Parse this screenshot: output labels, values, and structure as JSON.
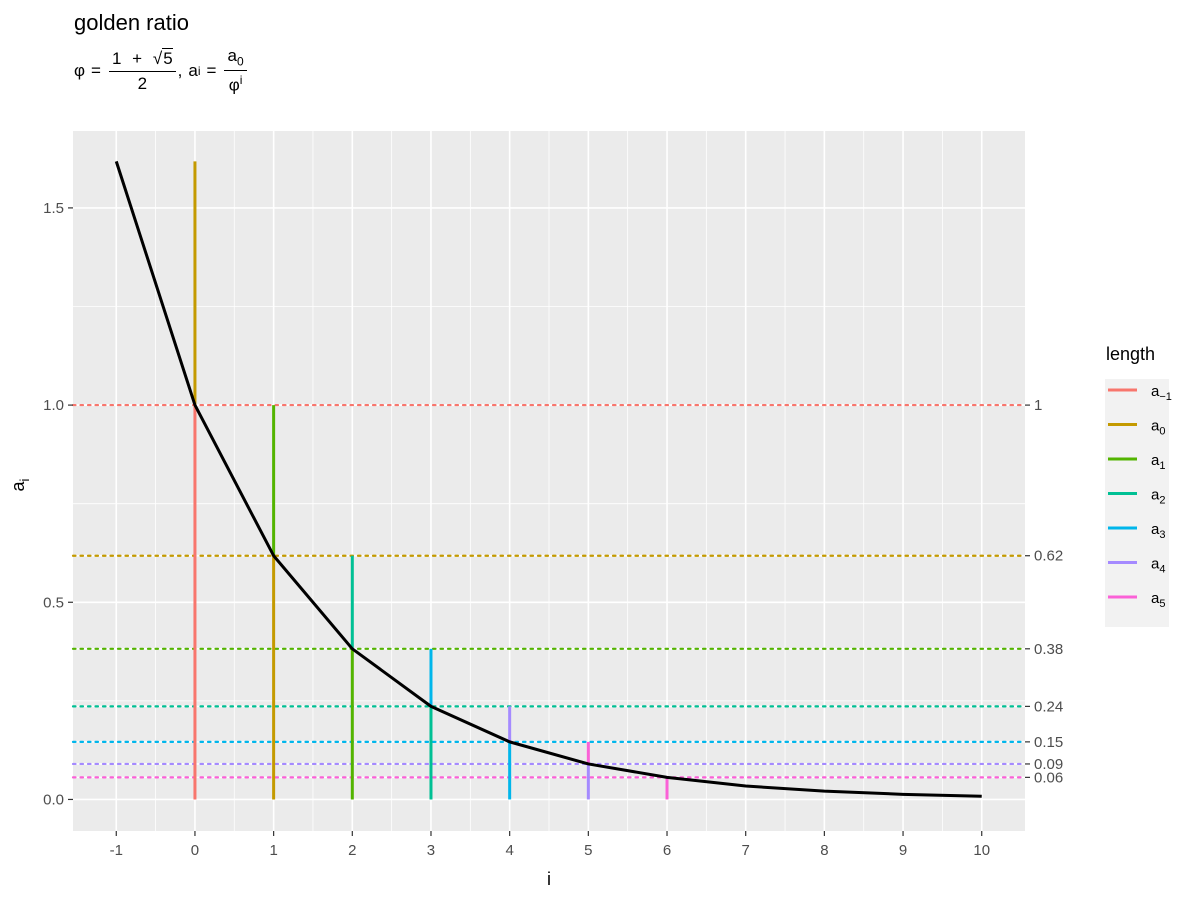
{
  "title": "golden ratio",
  "formula": {
    "phi": "φ",
    "equals": "=",
    "num_one": "1",
    "plus": "+",
    "root_sign": "√",
    "root_arg": "5",
    "den_two": "2",
    "comma": ",",
    "a": "a",
    "a_sub_i": "i",
    "a_sub_0": "0",
    "phi_sup": "i"
  },
  "chart_data": {
    "type": "line",
    "xlabel": "i",
    "ylabel": "a",
    "ylabel_sub": "i",
    "xlim": [
      -1.55,
      10.55
    ],
    "ylim": [
      -0.08,
      1.695
    ],
    "x_ticks": [
      -1,
      0,
      1,
      2,
      3,
      4,
      5,
      6,
      7,
      8,
      9,
      10
    ],
    "x_tick_labels": [
      "-1",
      "0",
      "1",
      "2",
      "3",
      "4",
      "5",
      "6",
      "7",
      "8",
      "9",
      "10"
    ],
    "y_ticks": [
      0.0,
      0.5,
      1.0,
      1.5
    ],
    "y_tick_labels": [
      "0.0",
      "0.5",
      "1.0",
      "1.5"
    ],
    "y_minor_ticks": [
      0.25,
      0.75,
      1.25
    ],
    "secondary_y_ticks": [
      1.0,
      0.618,
      0.382,
      0.236,
      0.146,
      0.09,
      0.056
    ],
    "secondary_y_tick_labels": [
      "1",
      "0.62",
      "0.38",
      "0.24",
      "0.15",
      "0.09",
      "0.06"
    ],
    "curve": {
      "x": [
        -1,
        0,
        1,
        2,
        3,
        4,
        5,
        6,
        7,
        8,
        9,
        10
      ],
      "y": [
        1.618,
        1.0,
        0.618,
        0.382,
        0.236,
        0.146,
        0.09,
        0.056,
        0.034,
        0.021,
        0.013,
        0.008
      ],
      "color": "#000000"
    },
    "segments": [
      {
        "legend_sub": "−1",
        "color": "#F8766D",
        "x": 0,
        "y0": 0,
        "y1": 1.0,
        "ref_y": 1.0
      },
      {
        "legend_sub": "0",
        "color": "#C49A00",
        "x": 0,
        "y0": 1.0,
        "y1": 1.618,
        "extra_x": 1,
        "extra_y0": 0,
        "extra_y1": 0.618,
        "ref_y": 0.618
      },
      {
        "legend_sub": "1",
        "color": "#53B400",
        "x": 1,
        "y0": 0.618,
        "y1": 1.0,
        "extra_x": 2,
        "extra_y0": 0,
        "extra_y1": 0.382,
        "ref_y": 0.382
      },
      {
        "legend_sub": "2",
        "color": "#00C094",
        "x": 2,
        "y0": 0.382,
        "y1": 0.618,
        "extra_x": 3,
        "extra_y0": 0,
        "extra_y1": 0.236,
        "ref_y": 0.236
      },
      {
        "legend_sub": "3",
        "color": "#00B6EB",
        "x": 3,
        "y0": 0.236,
        "y1": 0.382,
        "extra_x": 4,
        "extra_y0": 0,
        "extra_y1": 0.146,
        "ref_y": 0.146
      },
      {
        "legend_sub": "4",
        "color": "#A58AFF",
        "x": 4,
        "y0": 0.146,
        "y1": 0.236,
        "extra_x": 5,
        "extra_y0": 0,
        "extra_y1": 0.09,
        "ref_y": 0.09
      },
      {
        "legend_sub": "5",
        "color": "#FB61D7",
        "x": 5,
        "y0": 0.09,
        "y1": 0.146,
        "extra_x": 6,
        "extra_y0": 0,
        "extra_y1": 0.056,
        "ref_y": 0.056
      }
    ],
    "legend": {
      "title": "length",
      "placement": "right",
      "letter": "a"
    },
    "panel_background": "#EBEBEB",
    "grid": true
  }
}
